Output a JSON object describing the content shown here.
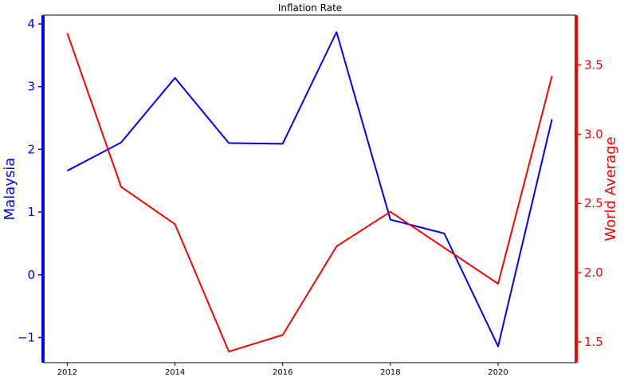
{
  "chart_data": {
    "type": "line",
    "title": "Inflation Rate",
    "x": [
      2012,
      2013,
      2014,
      2015,
      2016,
      2017,
      2018,
      2019,
      2020,
      2021
    ],
    "x_ticks": [
      2012,
      2014,
      2016,
      2018,
      2020
    ],
    "x_tick_labels": [
      "2012",
      "2014",
      "2016",
      "2018",
      "2020"
    ],
    "series": [
      {
        "name": "Malaysia",
        "axis": "left",
        "color": "#0000ff",
        "values": [
          1.66,
          2.11,
          3.14,
          2.1,
          2.09,
          3.87,
          0.88,
          0.66,
          -1.14,
          2.48
        ]
      },
      {
        "name": "World Average",
        "axis": "right",
        "color": "#ff0000",
        "values": [
          3.73,
          2.62,
          2.35,
          1.43,
          1.55,
          2.19,
          2.44,
          2.18,
          1.92,
          3.42
        ]
      }
    ],
    "y_left": {
      "label": "Malaysia",
      "color": "#0000ff",
      "ylim": [
        -1.4,
        4.14
      ],
      "ticks": [
        -1,
        0,
        1,
        2,
        3,
        4
      ],
      "tick_labels": [
        "−1",
        "0",
        "1",
        "2",
        "3",
        "4"
      ]
    },
    "y_right": {
      "label": "World Average",
      "color": "#ff0000",
      "ylim": [
        1.35,
        3.86
      ],
      "ticks": [
        1.5,
        2.0,
        2.5,
        3.0,
        3.5
      ],
      "tick_labels": [
        "1.5",
        "2.0",
        "2.5",
        "3.0",
        "3.5"
      ]
    },
    "xlim": [
      2011.55,
      2021.45
    ],
    "grid": false,
    "legend": "none"
  }
}
